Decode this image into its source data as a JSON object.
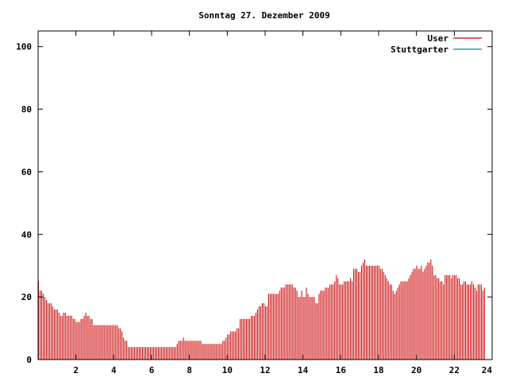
{
  "chart_data": {
    "type": "bar",
    "title": "Sonntag 27. Dezember 2009",
    "xlabel": "",
    "ylabel": "",
    "xlim": [
      0,
      24
    ],
    "ylim": [
      0,
      105
    ],
    "x_ticks": [
      2,
      4,
      6,
      8,
      10,
      12,
      14,
      16,
      18,
      20,
      22,
      24
    ],
    "y_ticks": [
      0,
      20,
      40,
      60,
      80,
      100
    ],
    "legend_position": "top-right",
    "grid": false,
    "series": [
      {
        "name": "User",
        "color": "#cc0000",
        "x_step_hours": 0.0833,
        "values": [
          25,
          22,
          22,
          21,
          20,
          19,
          18,
          18,
          18,
          17,
          16,
          16,
          16,
          15,
          14,
          14,
          15,
          15,
          14,
          14,
          14,
          14,
          13,
          13,
          12,
          12,
          12,
          13,
          13,
          14,
          15,
          14,
          14,
          13,
          13,
          11,
          11,
          11,
          11,
          11,
          11,
          11,
          11,
          11,
          11,
          11,
          11,
          11,
          11,
          11,
          11,
          10,
          10,
          9,
          7,
          6,
          6,
          4,
          4,
          4,
          4,
          4,
          4,
          4,
          4,
          4,
          4,
          4,
          4,
          4,
          4,
          4,
          4,
          4,
          4,
          4,
          4,
          4,
          4,
          4,
          4,
          4,
          4,
          4,
          4,
          4,
          4,
          4,
          5,
          6,
          6,
          6,
          7,
          6,
          6,
          6,
          6,
          6,
          6,
          6,
          6,
          6,
          6,
          6,
          5,
          5,
          5,
          5,
          5,
          5,
          5,
          5,
          5,
          5,
          5,
          5,
          5,
          6,
          6,
          7,
          8,
          8,
          9,
          9,
          9,
          9,
          10,
          10,
          13,
          13,
          13,
          13,
          13,
          13,
          13,
          14,
          14,
          14,
          15,
          16,
          17,
          17,
          18,
          18,
          17,
          17,
          21,
          21,
          21,
          21,
          21,
          21,
          21,
          22,
          23,
          23,
          23,
          24,
          24,
          24,
          24,
          24,
          23,
          23,
          22,
          20,
          20,
          22,
          20,
          20,
          23,
          21,
          20,
          20,
          20,
          20,
          18,
          18,
          21,
          22,
          22,
          22,
          23,
          23,
          23,
          24,
          24,
          24,
          25,
          27,
          26,
          24,
          24,
          24,
          25,
          25,
          25,
          25,
          26,
          25,
          29,
          29,
          29,
          28,
          28,
          30,
          31,
          32,
          30,
          30,
          30,
          30,
          30,
          30,
          30,
          30,
          30,
          29,
          29,
          28,
          27,
          26,
          25,
          24,
          24,
          22,
          21,
          22,
          23,
          24,
          25,
          25,
          25,
          25,
          25,
          26,
          27,
          28,
          29,
          29,
          30,
          29,
          29,
          30,
          28,
          29,
          30,
          31,
          31,
          32,
          30,
          27,
          27,
          26,
          26,
          25,
          25,
          24,
          27,
          27,
          27,
          27,
          26,
          27,
          27,
          27,
          26,
          26,
          24,
          24,
          25,
          25,
          24,
          24,
          24,
          25,
          24,
          23,
          22,
          24,
          24,
          24,
          22,
          23
        ]
      },
      {
        "name": "Stuttgarter",
        "color": "#009090",
        "values": []
      }
    ]
  }
}
